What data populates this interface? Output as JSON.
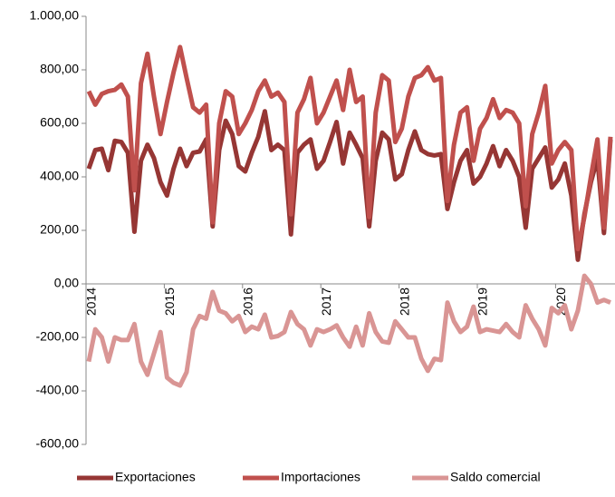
{
  "chart_data": {
    "type": "line",
    "categories": [
      "2014",
      null,
      null,
      null,
      null,
      null,
      null,
      null,
      null,
      null,
      null,
      null,
      "2015",
      null,
      null,
      null,
      null,
      null,
      null,
      null,
      null,
      null,
      null,
      null,
      "2016",
      null,
      null,
      null,
      null,
      null,
      null,
      null,
      null,
      null,
      null,
      null,
      "2017",
      null,
      null,
      null,
      null,
      null,
      null,
      null,
      null,
      null,
      null,
      null,
      "2018",
      null,
      null,
      null,
      null,
      null,
      null,
      null,
      null,
      null,
      null,
      null,
      "2019",
      null,
      null,
      null,
      null,
      null,
      null,
      null,
      null,
      null,
      null,
      null,
      "2020",
      null,
      null,
      null,
      null,
      null,
      null,
      null,
      null
    ],
    "series": [
      {
        "name": "Exportaciones",
        "color": "#963634",
        "values": [
          430,
          500,
          505,
          425,
          535,
          530,
          490,
          195,
          460,
          520,
          470,
          380,
          330,
          430,
          505,
          440,
          490,
          495,
          540,
          215,
          500,
          610,
          560,
          440,
          420,
          490,
          550,
          645,
          500,
          520,
          500,
          185,
          490,
          520,
          540,
          430,
          460,
          530,
          605,
          450,
          565,
          520,
          470,
          215,
          460,
          565,
          540,
          390,
          410,
          500,
          570,
          500,
          485,
          480,
          485,
          280,
          380,
          460,
          500,
          375,
          400,
          450,
          515,
          440,
          500,
          460,
          400,
          210,
          430,
          470,
          510,
          360,
          390,
          450,
          330,
          90,
          260,
          380,
          470,
          190,
          540
        ]
      },
      {
        "name": "Importaciones",
        "color": "#c0504d",
        "values": [
          720,
          670,
          710,
          720,
          725,
          745,
          700,
          350,
          750,
          860,
          700,
          560,
          680,
          790,
          885,
          770,
          660,
          640,
          670,
          230,
          600,
          720,
          700,
          560,
          600,
          650,
          720,
          760,
          700,
          715,
          680,
          260,
          640,
          690,
          770,
          600,
          640,
          700,
          760,
          650,
          800,
          680,
          700,
          250,
          640,
          780,
          760,
          530,
          580,
          700,
          770,
          780,
          810,
          760,
          770,
          310,
          520,
          640,
          660,
          460,
          580,
          620,
          690,
          620,
          650,
          640,
          600,
          290,
          560,
          640,
          740,
          450,
          500,
          530,
          500,
          130,
          250,
          400,
          540,
          210,
          550
        ]
      },
      {
        "name": "Saldo comercial",
        "color": "#d99594",
        "values": [
          -290,
          -170,
          -200,
          -290,
          -200,
          -210,
          -210,
          -150,
          -290,
          -340,
          -260,
          -180,
          -350,
          -370,
          -380,
          -330,
          -170,
          -120,
          -130,
          -30,
          -100,
          -110,
          -140,
          -120,
          -180,
          -160,
          -170,
          -115,
          -200,
          -195,
          -180,
          -105,
          -150,
          -170,
          -230,
          -170,
          -180,
          -170,
          -155,
          -200,
          -235,
          -160,
          -230,
          -110,
          -180,
          -215,
          -220,
          -140,
          -170,
          -200,
          -200,
          -280,
          -325,
          -280,
          -285,
          -70,
          -140,
          -180,
          -160,
          -85,
          -180,
          -170,
          -175,
          -180,
          -150,
          -180,
          -200,
          -80,
          -130,
          -170,
          -230,
          -90,
          -110,
          -80,
          -170,
          -100,
          30,
          0,
          -70,
          -60,
          -70
        ]
      }
    ],
    "ylim": [
      -600,
      1000
    ],
    "yticks": [
      {
        "value": -600,
        "label": "-600,00"
      },
      {
        "value": -400,
        "label": "-400,00"
      },
      {
        "value": -200,
        "label": "-200,00"
      },
      {
        "value": 0,
        "label": "0,00"
      },
      {
        "value": 200,
        "label": "200,00"
      },
      {
        "value": 400,
        "label": "400,00"
      },
      {
        "value": 600,
        "label": "600,00"
      },
      {
        "value": 800,
        "label": "800,00"
      },
      {
        "value": 1000,
        "label": "1.000,00"
      }
    ],
    "legend": "bottom"
  }
}
